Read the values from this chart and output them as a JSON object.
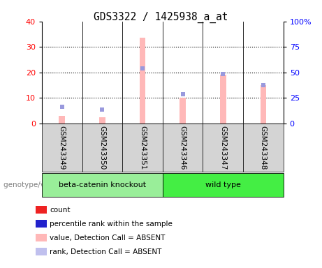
{
  "title": "GDS3322 / 1425938_a_at",
  "samples": [
    "GSM243349",
    "GSM243350",
    "GSM243351",
    "GSM243346",
    "GSM243347",
    "GSM243348"
  ],
  "pink_bars": [
    3.0,
    2.5,
    33.5,
    10.0,
    19.0,
    15.0
  ],
  "blue_squares_y": [
    6.5,
    5.5,
    21.5,
    11.5,
    19.5,
    15.0
  ],
  "ylim_left": [
    0,
    40
  ],
  "ylim_right": [
    0,
    100
  ],
  "yticks_left": [
    0,
    10,
    20,
    30,
    40
  ],
  "yticks_right": [
    0,
    25,
    50,
    75,
    100
  ],
  "ytick_labels_right": [
    "0",
    "25",
    "50",
    "75",
    "100%"
  ],
  "pink_color": "#ffb8b8",
  "blue_color": "#9999dd",
  "group1_color": "#99ee99",
  "group2_color": "#44ee44",
  "sample_bg": "#d4d4d4",
  "legend_colors": [
    "#ee2222",
    "#2222cc",
    "#ffb8b8",
    "#c0c0ee"
  ],
  "legend_labels": [
    "count",
    "percentile rank within the sample",
    "value, Detection Call = ABSENT",
    "rank, Detection Call = ABSENT"
  ]
}
